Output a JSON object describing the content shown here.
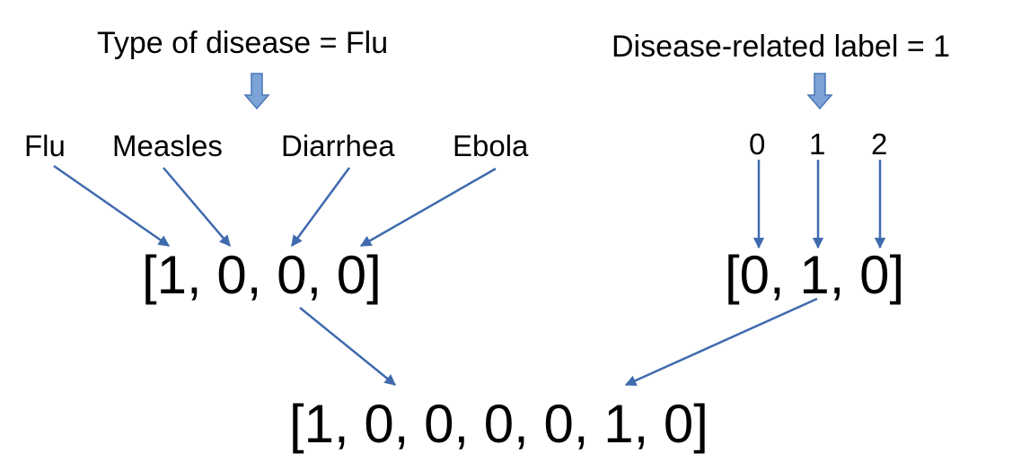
{
  "left_branch": {
    "title": "Type of disease = Flu",
    "categories": [
      "Flu",
      "Measles",
      "Diarrhea",
      "Ebola"
    ],
    "vector": "[1, 0, 0, 0]"
  },
  "right_branch": {
    "title": "Disease-related label = 1",
    "labels": [
      "0",
      "1",
      "2"
    ],
    "vector": "[0, 1, 0]"
  },
  "combined_vector": "[1, 0, 0, 0, 0, 1, 0]",
  "colors": {
    "arrow": "#3F6AAE",
    "block_arrow_fill": "#7BA3D6",
    "block_arrow_stroke": "#4A77B6",
    "text": "#000000"
  }
}
